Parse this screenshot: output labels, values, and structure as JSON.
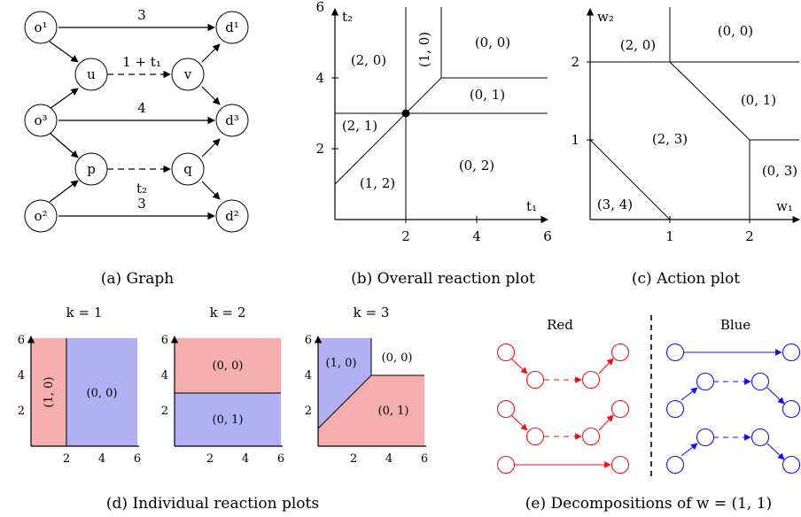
{
  "panels": {
    "a": {
      "caption": "(a) Graph",
      "nodes": {
        "o1": "o¹",
        "o3": "o³",
        "o2": "o²",
        "u": "u",
        "v": "v",
        "p": "p",
        "q": "q",
        "d1": "d¹",
        "d3": "d³",
        "d2": "d²"
      },
      "edge_labels": {
        "o1_d1": "3",
        "u_v": "1 + t₁",
        "o3_d3": "4",
        "p_q": "t₂",
        "o2_d2": "3"
      }
    },
    "b": {
      "caption": "(b) Overall reaction plot",
      "x_axis_label": "t₁",
      "y_axis_label": "t₂",
      "x_ticks": [
        "2",
        "4",
        "6"
      ],
      "y_ticks": [
        "2",
        "4",
        "6"
      ],
      "regions": {
        "r20": "(2, 0)",
        "r10": "(1, 0)",
        "r00": "(0, 0)",
        "r01": "(0, 1)",
        "r21": "(2, 1)",
        "r02": "(0, 2)",
        "r12": "(1, 2)"
      }
    },
    "c": {
      "caption": "(c) Action plot",
      "x_axis_label": "w₁",
      "y_axis_label": "w₂",
      "x_ticks": [
        "1",
        "2"
      ],
      "y_ticks": [
        "1",
        "2"
      ],
      "regions": {
        "r20": "(2, 0)",
        "r00": "(0, 0)",
        "r01": "(0, 1)",
        "r23": "(2, 3)",
        "r03": "(0, 3)",
        "r34": "(3, 4)"
      }
    },
    "d": {
      "caption": "(d) Individual reaction plots",
      "plots": [
        {
          "title": "k = 1",
          "x_ticks": [
            "2",
            "4",
            "6"
          ],
          "y_ticks": [
            "2",
            "4",
            "6"
          ],
          "regions": {
            "left": "(1, 0)",
            "right": "(0, 0)"
          }
        },
        {
          "title": "k = 2",
          "x_ticks": [
            "2",
            "4",
            "6"
          ],
          "y_ticks": [
            "2",
            "4",
            "6"
          ],
          "regions": {
            "top": "(0, 0)",
            "bottom": "(0, 1)"
          }
        },
        {
          "title": "k = 3",
          "x_ticks": [
            "2",
            "4",
            "6"
          ],
          "y_ticks": [
            "2",
            "4",
            "6"
          ],
          "regions": {
            "upper_left": "(1, 0)",
            "upper_right": "(0, 0)",
            "lower": "(0, 1)"
          }
        }
      ],
      "colors": {
        "red": "#f4aeae",
        "blue": "#b0b0f2"
      }
    },
    "e": {
      "caption": "(e) Decompositions of w = (1, 1)",
      "red_title": "Red",
      "blue_title": "Blue",
      "colors": {
        "red": "#ee1111",
        "blue": "#1111ee"
      }
    }
  }
}
